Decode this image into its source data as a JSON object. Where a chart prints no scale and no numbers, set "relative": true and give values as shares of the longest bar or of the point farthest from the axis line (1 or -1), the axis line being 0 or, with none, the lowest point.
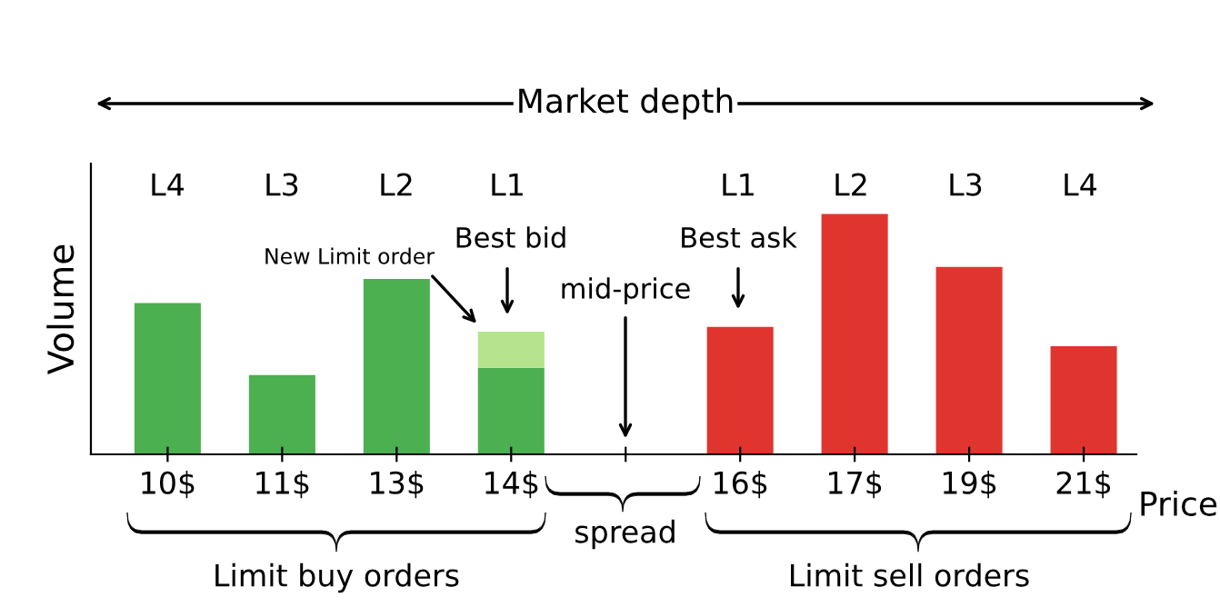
{
  "chart_data": {
    "type": "bar",
    "relative": true,
    "stacked": true,
    "xlabel": "Price",
    "ylabel": "Volume",
    "categories": [
      "10$",
      "11$",
      "13$",
      "14$",
      null,
      "16$",
      "17$",
      "19$",
      "21$"
    ],
    "series": [
      {
        "colors": [
          "#4caf50",
          "#4caf50",
          "#4caf50",
          "#4caf50",
          "#4caf50",
          "#e0352f",
          "#e0352f",
          "#e0352f",
          "#e0352f"
        ],
        "values": [
          0.63,
          0.33,
          0.73,
          0.36,
          null,
          0.53,
          1,
          0.78,
          0.45
        ]
      },
      {
        "colors": [
          "#b6e38d",
          "#b6e38d",
          "#b6e38d",
          "#b6e38d",
          "#b6e38d",
          "#b6e38d",
          "#b6e38d",
          "#b6e38d",
          "#b6e38d"
        ],
        "values": [
          null,
          null,
          null,
          0.15,
          null,
          null,
          null,
          null,
          null
        ]
      }
    ],
    "annotations": [
      "Market depth",
      "L4",
      "L3",
      "L2",
      "L1",
      "L1",
      "L2",
      "L3",
      "L4",
      "New Limit order",
      "Best bid",
      "Best ask",
      "mid-price",
      "spread",
      "Limit buy orders",
      "Limit sell orders"
    ],
    "legend": false,
    "grid": false
  }
}
